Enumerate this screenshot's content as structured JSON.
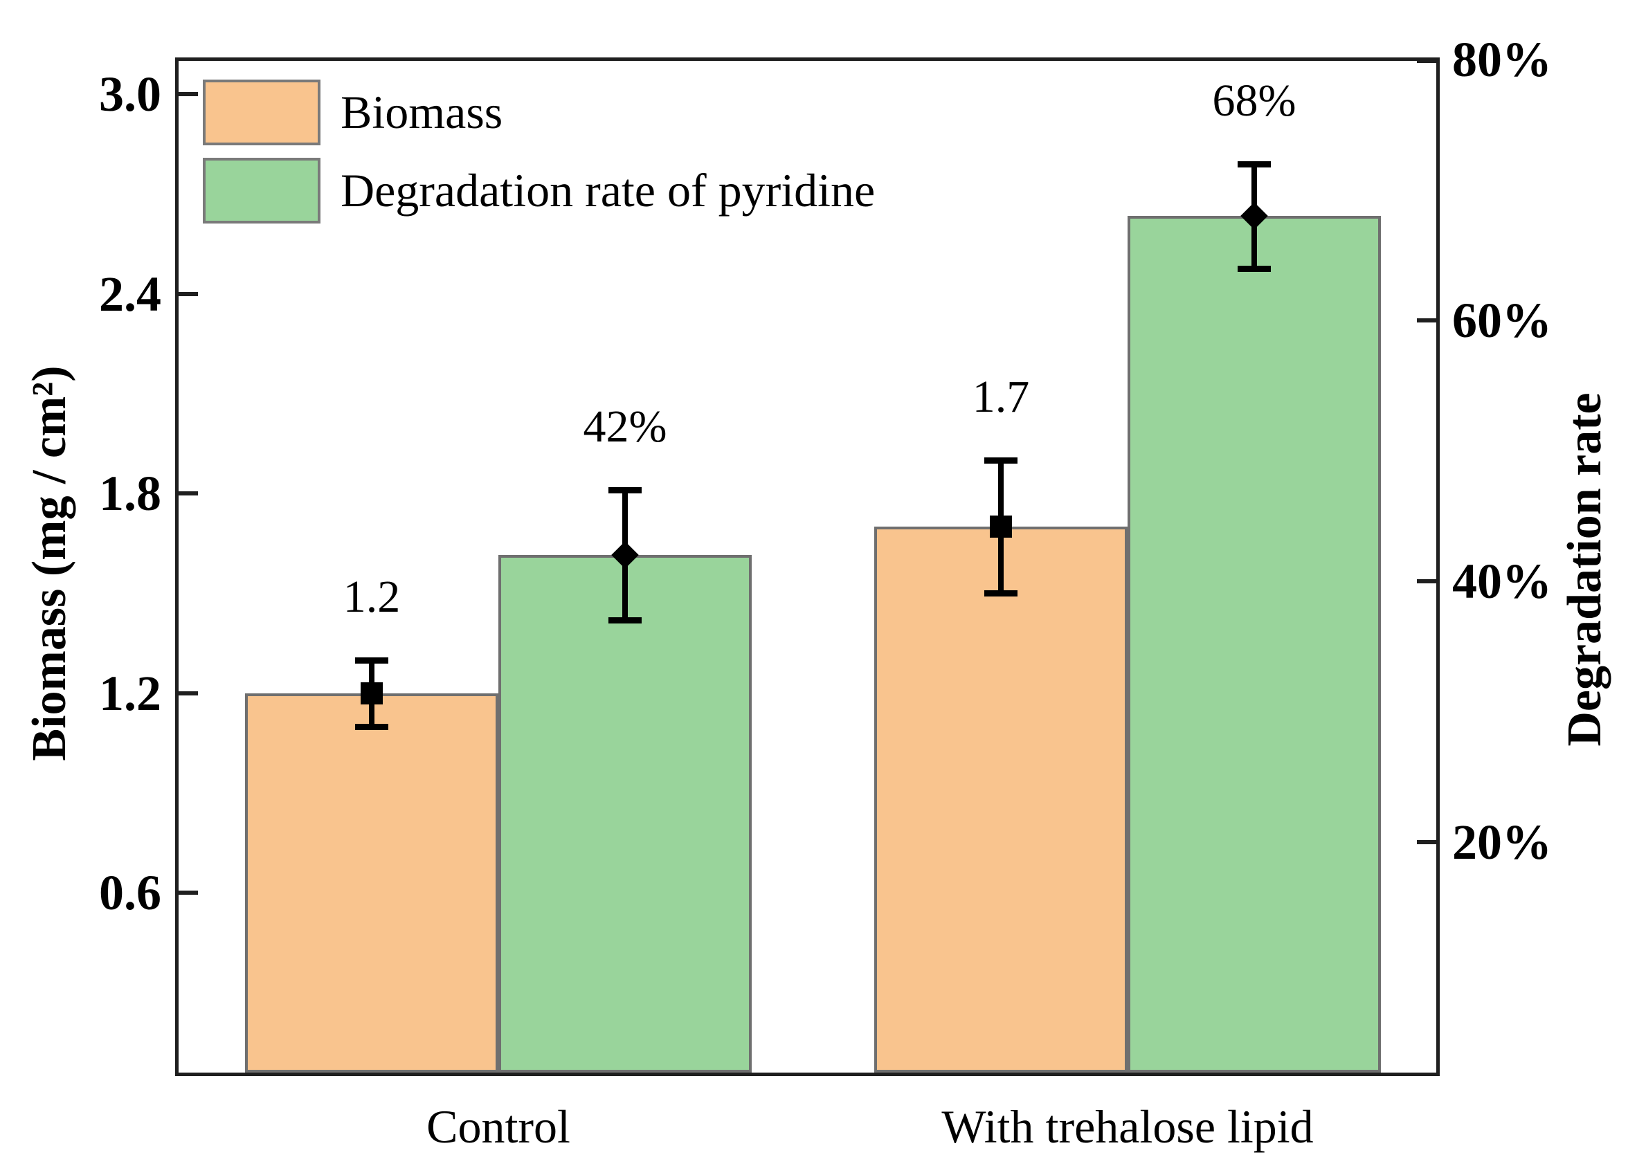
{
  "chart_data": {
    "type": "bar",
    "title": "",
    "categories": [
      "Control",
      "With trehalose lipid"
    ],
    "series": [
      {
        "name": "Biomass",
        "axis": "left",
        "color": "#F9C48E",
        "border_color": "#6F6F6F",
        "marker": "square",
        "values": [
          1.2,
          1.7
        ],
        "errors": [
          0.1,
          0.2
        ],
        "value_labels": [
          "1.2",
          "1.7"
        ]
      },
      {
        "name": "Degradation rate of pyridine",
        "axis": "right",
        "color": "#99D49B",
        "border_color": "#6F6F6F",
        "marker": "diamond",
        "values": [
          42,
          68
        ],
        "errors": [
          5,
          4
        ],
        "value_labels": [
          "42%",
          "68%"
        ]
      }
    ],
    "left_axis": {
      "label": "Biomass (mg / cm²)",
      "ticks": [
        3.0,
        2.4,
        1.8,
        1.2,
        0.6
      ],
      "tick_labels": [
        "3.0",
        "2.4",
        "1.8",
        "1.2",
        "0.6"
      ],
      "range": [
        0.06,
        3.1
      ]
    },
    "right_axis": {
      "label": "Degradation rate",
      "ticks": [
        80,
        60,
        40,
        20
      ],
      "tick_labels": [
        "80%",
        "60%",
        "40%",
        "20%"
      ],
      "range": [
        2.3,
        79.9
      ]
    },
    "legend": {
      "position": "top-left",
      "entries": [
        "Biomass",
        "Degradation rate of pyridine"
      ]
    },
    "grid": false,
    "error_bar_color": "#000000",
    "frame_color": "#1F1F1F",
    "background_color": "#FFFFFF"
  }
}
